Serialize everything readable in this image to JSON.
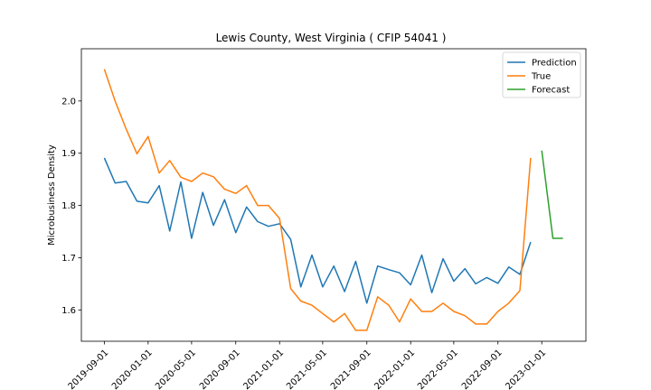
{
  "chart_data": {
    "type": "line",
    "title": "Lewis County, West Virginia ( CFIP 54041 )",
    "xlabel": "",
    "ylabel": "Microbusiness Density",
    "ylim": [
      1.54,
      2.1
    ],
    "yticks": [
      "1.6",
      "1.7",
      "1.8",
      "1.9",
      "2.0"
    ],
    "xticks": [
      "2019-09-01",
      "2020-01-01",
      "2020-05-01",
      "2020-09-01",
      "2021-01-01",
      "2021-05-01",
      "2021-09-01",
      "2022-01-01",
      "2022-05-01",
      "2022-09-01",
      "2023-01-01"
    ],
    "legend_position": "top-right",
    "grid": false,
    "series": [
      {
        "name": "Prediction",
        "color": "#1f77b4",
        "x": [
          "2019-09-01",
          "2019-10-01",
          "2019-11-01",
          "2019-12-01",
          "2020-01-01",
          "2020-02-01",
          "2020-03-01",
          "2020-04-01",
          "2020-05-01",
          "2020-06-01",
          "2020-07-01",
          "2020-08-01",
          "2020-09-01",
          "2020-10-01",
          "2020-11-01",
          "2020-12-01",
          "2021-01-01",
          "2021-02-01",
          "2021-03-01",
          "2021-04-01",
          "2021-05-01",
          "2021-06-01",
          "2021-07-01",
          "2021-08-01",
          "2021-09-01",
          "2021-10-01",
          "2021-11-01",
          "2021-12-01",
          "2022-01-01",
          "2022-02-01",
          "2022-03-01",
          "2022-04-01",
          "2022-05-01",
          "2022-06-01",
          "2022-07-01",
          "2022-08-01",
          "2022-09-01",
          "2022-10-01",
          "2022-11-01",
          "2022-12-01"
        ],
        "values": [
          1.891,
          1.843,
          1.846,
          1.808,
          1.805,
          1.838,
          1.751,
          1.845,
          1.737,
          1.825,
          1.762,
          1.811,
          1.748,
          1.797,
          1.769,
          1.76,
          1.765,
          1.735,
          1.644,
          1.705,
          1.644,
          1.684,
          1.635,
          1.693,
          1.613,
          1.684,
          1.677,
          1.671,
          1.648,
          1.705,
          1.633,
          1.698,
          1.655,
          1.679,
          1.65,
          1.662,
          1.651,
          1.682,
          1.668,
          1.73
        ]
      },
      {
        "name": "True",
        "color": "#ff7f0e",
        "x": [
          "2019-09-01",
          "2019-10-01",
          "2019-11-01",
          "2019-12-01",
          "2020-01-01",
          "2020-02-01",
          "2020-03-01",
          "2020-04-01",
          "2020-05-01",
          "2020-06-01",
          "2020-07-01",
          "2020-08-01",
          "2020-09-01",
          "2020-10-01",
          "2020-11-01",
          "2020-12-01",
          "2021-01-01",
          "2021-02-01",
          "2021-03-01",
          "2021-04-01",
          "2021-05-01",
          "2021-06-01",
          "2021-07-01",
          "2021-08-01",
          "2021-09-01",
          "2021-10-01",
          "2021-11-01",
          "2021-12-01",
          "2022-01-01",
          "2022-02-01",
          "2022-03-01",
          "2022-04-01",
          "2022-05-01",
          "2022-06-01",
          "2022-07-01",
          "2022-08-01",
          "2022-09-01",
          "2022-10-01",
          "2022-11-01",
          "2022-12-01"
        ],
        "values": [
          2.061,
          2.0,
          1.946,
          1.899,
          1.932,
          1.862,
          1.886,
          1.854,
          1.846,
          1.862,
          1.855,
          1.831,
          1.823,
          1.838,
          1.8,
          1.8,
          1.775,
          1.641,
          1.617,
          1.609,
          1.593,
          1.577,
          1.593,
          1.561,
          1.561,
          1.625,
          1.609,
          1.577,
          1.621,
          1.597,
          1.597,
          1.613,
          1.597,
          1.589,
          1.573,
          1.573,
          1.597,
          1.613,
          1.637,
          1.891
        ]
      },
      {
        "name": "Forecast",
        "color": "#2ca02c",
        "x": [
          "2023-01-01",
          "2023-02-01",
          "2023-03-01"
        ],
        "values": [
          1.905,
          1.737,
          1.737
        ]
      }
    ]
  }
}
